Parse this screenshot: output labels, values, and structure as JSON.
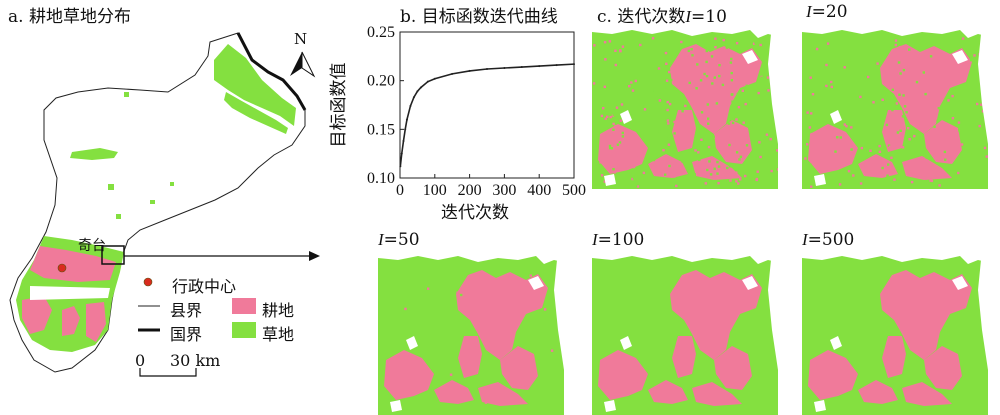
{
  "panel_a": {
    "title": "a. 耕地草地分布",
    "north_label": "N",
    "place_label": "奇台",
    "legend": {
      "admin_center": "行政中心",
      "county_border": "县界",
      "national_border": "国界",
      "cropland": "耕地",
      "grassland": "草地"
    },
    "scale_zero": "0",
    "scale_value": "30 km"
  },
  "panel_b": {
    "title": "b. 目标函数迭代曲线",
    "chart_data": {
      "type": "line",
      "title": "b. 目标函数迭代曲线",
      "xlabel": "迭代次数",
      "ylabel": "目标函数值",
      "xlim": [
        0,
        500
      ],
      "ylim": [
        0.1,
        0.25
      ],
      "xticks": [
        "0",
        "100",
        "200",
        "300",
        "400",
        "500"
      ],
      "yticks": [
        "0.10",
        "0.15",
        "0.20",
        "0.25"
      ],
      "grid": false,
      "series": [
        {
          "x": [
            1,
            5,
            10,
            15,
            20,
            30,
            40,
            50,
            60,
            80,
            100,
            150,
            200,
            250,
            300,
            350,
            400,
            450,
            500
          ],
          "y": [
            0.112,
            0.125,
            0.138,
            0.15,
            0.16,
            0.174,
            0.183,
            0.189,
            0.193,
            0.199,
            0.202,
            0.207,
            0.21,
            0.212,
            0.213,
            0.214,
            0.215,
            0.216,
            0.217
          ]
        }
      ]
    }
  },
  "panel_c": {
    "title_prefix": "c. 迭代次数",
    "iteration_symbol": "I",
    "maps": [
      {
        "value": "=10",
        "noise": 0.3
      },
      {
        "value": "=20",
        "noise": 0.22
      },
      {
        "value": "=50",
        "noise": 0.02
      },
      {
        "value": "=100",
        "noise": 0.0
      },
      {
        "value": "=500",
        "noise": 0.0
      }
    ]
  },
  "colors": {
    "cropland": "#f07a9a",
    "grassland": "#84e040",
    "admin_center": "#d92b1e"
  }
}
